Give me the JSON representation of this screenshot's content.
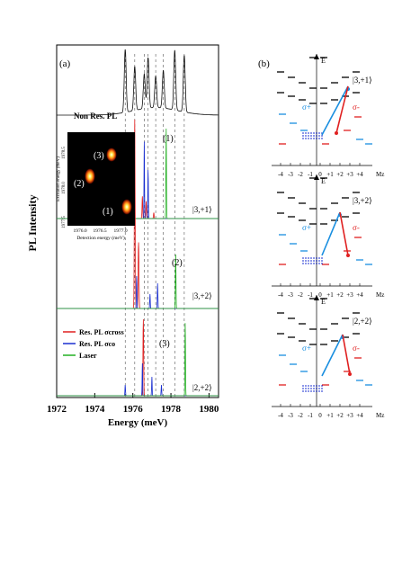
{
  "figure": {
    "panel_a_label": "(a)",
    "panel_b_label": "(b)",
    "y_axis_label": "PL Intensity",
    "x_axis_label": "Energy (meV)",
    "x_ticks": [
      "1972",
      "1974",
      "1976",
      "1978",
      "1980"
    ],
    "nonres_label": "Non Res. PL",
    "peak_labels": [
      "(1)",
      "(2)",
      "(3)"
    ],
    "state_labels": [
      "|3,+1⟩",
      "|3,+2⟩",
      "|2,+2⟩"
    ],
    "legend": [
      {
        "text": "Res. PL σcross",
        "color": "#e02020"
      },
      {
        "text": "Res. PL σco",
        "color": "#1a2fd0"
      },
      {
        "text": "Laser",
        "color": "#22b022"
      }
    ]
  },
  "inset": {
    "xlabel": "Detection energy (meV)",
    "ylabel": "Excitation energy (meV)",
    "x_ticks": [
      "1976.0",
      "1976.5",
      "1977.0"
    ],
    "y_ticks": [
      "1977.5",
      "1978.0",
      "1978.5"
    ],
    "spot_labels": [
      "(3)",
      "(2)",
      "(1)"
    ]
  },
  "diagrams": [
    {
      "state": "|3,+1⟩",
      "axis_E": "E",
      "axis_M": "Mz",
      "ticks": [
        "-4",
        "-3",
        "-2",
        "-1",
        "0",
        "+1",
        "+2",
        "+3",
        "+4"
      ],
      "sigma_plus": "σ+",
      "sigma_minus": "σ-"
    },
    {
      "state": "|3,+2⟩",
      "axis_E": "E",
      "axis_M": "Mz",
      "ticks": [
        "-4",
        "-3",
        "-2",
        "-1",
        "0",
        "+1",
        "+2",
        "+3",
        "+4"
      ],
      "sigma_plus": "σ+",
      "sigma_minus": "σ-"
    },
    {
      "state": "|2,+2⟩",
      "axis_E": "E",
      "axis_M": "Mz",
      "ticks": [
        "-4",
        "-3",
        "-2",
        "-1",
        "0",
        "+1",
        "+2",
        "+3",
        "+4"
      ],
      "sigma_plus": "σ+",
      "sigma_minus": "σ-"
    }
  ],
  "chart_data": {
    "type": "line",
    "xlabel": "Energy (meV)",
    "ylabel": "PL Intensity",
    "xlim": [
      1972,
      1980.5
    ],
    "x_ticks": [
      1972,
      1974,
      1976,
      1978,
      1980
    ],
    "traces": [
      {
        "name": "Non Res. PL",
        "color": "#111111",
        "peaks": [
          [
            1975.6,
            1.0
          ],
          [
            1976.1,
            0.7
          ],
          [
            1976.6,
            0.55
          ],
          [
            1976.8,
            0.8
          ],
          [
            1977.2,
            0.5
          ],
          [
            1977.6,
            0.6
          ],
          [
            1978.2,
            0.95
          ],
          [
            1978.7,
            0.9
          ]
        ]
      },
      {
        "name": "(1) Res. PL σcross",
        "color": "#e02020",
        "peaks": [
          [
            1976.5,
            0.45
          ],
          [
            1976.7,
            0.35
          ],
          [
            1977.1,
            0.12
          ]
        ]
      },
      {
        "name": "(1) Res. PL σco",
        "color": "#1a2fd0",
        "peaks": [
          [
            1976.6,
            0.95
          ],
          [
            1976.8,
            0.6
          ]
        ]
      },
      {
        "name": "(1) Laser",
        "color": "#22b022",
        "peaks": [
          [
            1977.75,
            1.0
          ]
        ]
      },
      {
        "name": "(2) Res. PL σcross",
        "color": "#e02020",
        "peaks": [
          [
            1976.1,
            1.0
          ],
          [
            1976.3,
            0.35
          ]
        ]
      },
      {
        "name": "(2) Res. PL σco",
        "color": "#1a2fd0",
        "peaks": [
          [
            1976.2,
            0.45
          ],
          [
            1976.9,
            0.2
          ],
          [
            1977.3,
            0.35
          ]
        ]
      },
      {
        "name": "(2) Laser",
        "color": "#22b022",
        "peaks": [
          [
            1978.25,
            0.6
          ]
        ]
      },
      {
        "name": "(3) Res. PL σcross",
        "color": "#e02020",
        "peaks": [
          [
            1976.55,
            1.0
          ]
        ]
      },
      {
        "name": "(3) Res. PL σco",
        "color": "#1a2fd0",
        "peaks": [
          [
            1975.6,
            0.2
          ],
          [
            1976.5,
            0.6
          ],
          [
            1977.0,
            0.35
          ],
          [
            1977.5,
            0.2
          ]
        ]
      },
      {
        "name": "(3) Laser",
        "color": "#22b022",
        "peaks": [
          [
            1978.75,
            0.85
          ]
        ]
      }
    ]
  }
}
